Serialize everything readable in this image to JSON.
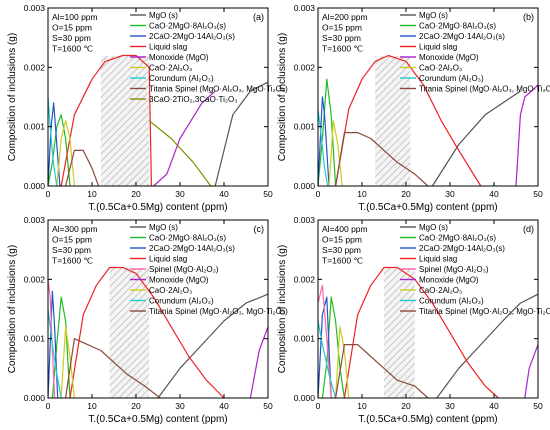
{
  "chart_data": [
    {
      "type": "line",
      "panel_label": "(a)",
      "conditions": [
        "Al=100 ppm",
        "O=15 ppm",
        "S=30 ppm",
        "T=1600 ℃"
      ],
      "xlabel": "T.(0.5Ca+0.5Mg) content (ppm)",
      "ylabel": "Composition of inclusions (g)",
      "xlim": [
        0,
        50
      ],
      "ylim": [
        0,
        0.003
      ],
      "xticks": [
        "0",
        "10",
        "20",
        "30",
        "40",
        "50"
      ],
      "yticks": [
        "0.000",
        "0.001",
        "0.002",
        "0.003"
      ],
      "hatched_region": [
        12,
        23
      ],
      "legend_position": "top-right",
      "series": [
        {
          "name": "MgO (s)",
          "color": "#555555",
          "x": [
            38,
            42,
            46,
            50
          ],
          "y": [
            0,
            0.0012,
            0.0016,
            0.00175
          ]
        },
        {
          "name": "CaO·2MgO·8Al₂O₃(s)",
          "color": "#22bb22",
          "x": [
            0,
            1,
            2,
            3,
            4,
            5
          ],
          "y": [
            0,
            0.0004,
            0.001,
            0.0012,
            0.0008,
            0
          ]
        },
        {
          "name": "2CaO·2MgO·14Al₂O₃(s)",
          "color": "#2255cc",
          "x": [
            0,
            0.7,
            1.3,
            2,
            2.7
          ],
          "y": [
            0,
            0.001,
            0.0014,
            0.0007,
            0
          ]
        },
        {
          "name": "Liquid slag",
          "color": "#ee2222",
          "x": [
            3,
            6,
            10,
            13,
            17,
            20,
            23,
            23.5
          ],
          "y": [
            0,
            0.0012,
            0.0018,
            0.0021,
            0.0022,
            0.0022,
            0.002,
            0
          ]
        },
        {
          "name": "Monoxide (MgO)",
          "color": "#aa22cc",
          "x": [
            24,
            27,
            30,
            35,
            38
          ],
          "y": [
            0,
            0.0002,
            0.0008,
            0.0014,
            0.0016
          ]
        },
        {
          "name": "CaO·2Al₂O₃",
          "color": "#cccc22",
          "x": [
            2,
            3,
            4,
            5,
            6
          ],
          "y": [
            0,
            0.0008,
            0.0011,
            0.0008,
            0
          ]
        },
        {
          "name": "Corundum (Al₂O₃)",
          "color": "#22cccc",
          "x": [
            0,
            0.5,
            1.2,
            2
          ],
          "y": [
            0.0015,
            0.001,
            0.0004,
            0
          ]
        },
        {
          "name": "Titania Spinel (MgO·Al₂O₃, MgO·Ti₂O₃)",
          "color": "#8b4a3c",
          "x": [
            4,
            6,
            8,
            10,
            11.5
          ],
          "y": [
            0,
            0.0006,
            0.0006,
            0.0003,
            0
          ]
        },
        {
          "name": "3CaO·2TiO₂,3CaO·Ti₂O₃",
          "color": "#888800",
          "x": [
            23,
            28,
            33,
            37
          ],
          "y": [
            0.0011,
            0.0008,
            0.0004,
            0
          ]
        }
      ]
    },
    {
      "type": "line",
      "panel_label": "(b)",
      "conditions": [
        "Al=200 ppm",
        "O=15 ppm",
        "S=30 ppm",
        "T=1600 ℃"
      ],
      "xlabel": "T.(0.5Ca+0.5Mg) content (ppm)",
      "ylabel": "Composition of inclusions (g)",
      "xlim": [
        0,
        50
      ],
      "ylim": [
        0,
        0.003
      ],
      "xticks": [
        "0",
        "10",
        "20",
        "30",
        "40",
        "50"
      ],
      "yticks": [
        "0.000",
        "0.001",
        "0.002",
        "0.003"
      ],
      "hatched_region": [
        13,
        21
      ],
      "legend_position": "top-right",
      "series": [
        {
          "name": "MgO (s)",
          "color": "#555555",
          "x": [
            26,
            32,
            38,
            44,
            46
          ],
          "y": [
            0,
            0.0007,
            0.0012,
            0.0015,
            0.0016
          ]
        },
        {
          "name": "CaO·2MgO·8Al₂O₃(s)",
          "color": "#22bb22",
          "x": [
            0,
            1,
            2,
            3,
            4
          ],
          "y": [
            0,
            0.0008,
            0.0018,
            0.0012,
            0
          ]
        },
        {
          "name": "2CaO·2MgO·14Al₂O₃(s)",
          "color": "#2255cc",
          "x": [
            0,
            1,
            1.5,
            2.5
          ],
          "y": [
            0,
            0.0015,
            0.0012,
            0
          ]
        },
        {
          "name": "Liquid slag",
          "color": "#ee2222",
          "x": [
            4,
            7,
            10,
            13,
            16,
            20,
            24,
            28,
            32,
            37
          ],
          "y": [
            0,
            0.0013,
            0.0018,
            0.0021,
            0.0022,
            0.0021,
            0.0017,
            0.0011,
            0.0006,
            0
          ]
        },
        {
          "name": "Monoxide (MgO)",
          "color": "#aa22cc",
          "x": [
            45,
            46,
            47,
            50
          ],
          "y": [
            0,
            0.0012,
            0.0015,
            0.0017
          ]
        },
        {
          "name": "CaO·2Al₂O₃",
          "color": "#cccc22",
          "x": [
            2.5,
            3.5,
            4.5,
            5.5
          ],
          "y": [
            0,
            0.0011,
            0.0007,
            0
          ]
        },
        {
          "name": "Corundum (Al₂O₃)",
          "color": "#22cccc",
          "x": [
            0,
            0.8,
            1.5,
            2.2
          ],
          "y": [
            0.0013,
            0.0008,
            0.0003,
            0
          ]
        },
        {
          "name": "Titania Spinel (MgO·Al₂O₃, MgO·Ti₂O₃)",
          "color": "#8b4a3c",
          "x": [
            4,
            6,
            9,
            12,
            15,
            18,
            22,
            25
          ],
          "y": [
            0,
            0.0009,
            0.0009,
            0.0008,
            0.0006,
            0.0004,
            0.0002,
            0
          ]
        }
      ]
    },
    {
      "type": "line",
      "panel_label": "(c)",
      "conditions": [
        "Al=300 ppm",
        "O=15 ppm",
        "S=30 ppm",
        "T=1600 ℃"
      ],
      "xlabel": "T.(0.5Ca+0.5Mg) content (ppm)",
      "ylabel": "Composition of inclusions (g)",
      "xlim": [
        0,
        50
      ],
      "ylim": [
        0,
        0.003
      ],
      "xticks": [
        "0",
        "10",
        "20",
        "30",
        "40",
        "50"
      ],
      "yticks": [
        "0.000",
        "0.001",
        "0.002",
        "0.003"
      ],
      "hatched_region": [
        14,
        23
      ],
      "legend_position": "top-right",
      "series": [
        {
          "name": "MgO (s)",
          "color": "#555555",
          "x": [
            25,
            30,
            35,
            40,
            45,
            50
          ],
          "y": [
            0,
            0.0005,
            0.0009,
            0.0013,
            0.0016,
            0.00175
          ]
        },
        {
          "name": "CaO·2MgO·8Al₂O₃(s)",
          "color": "#22bb22",
          "x": [
            1,
            2,
            3,
            4,
            5
          ],
          "y": [
            0,
            0.0009,
            0.0017,
            0.0013,
            0
          ]
        },
        {
          "name": "2CaO·2MgO·14Al₂O₃(s)",
          "color": "#2255cc",
          "x": [
            0,
            1,
            1.5,
            2.2
          ],
          "y": [
            0,
            0.0018,
            0.0012,
            0
          ]
        },
        {
          "name": "Liquid slag",
          "color": "#ee2222",
          "x": [
            5,
            8,
            11,
            14,
            17,
            20,
            24,
            28,
            32,
            36,
            40
          ],
          "y": [
            0,
            0.0014,
            0.0019,
            0.0022,
            0.0022,
            0.0021,
            0.0017,
            0.0012,
            0.0007,
            0.0003,
            0
          ]
        },
        {
          "name": "Spinel (MgO·Al₂O₃)",
          "color": "#ff66aa",
          "x": [
            0,
            0.5,
            1,
            1.5
          ],
          "y": [
            0.002,
            0.0017,
            0.0008,
            0
          ]
        },
        {
          "name": "Monoxide (MgO)",
          "color": "#aa22cc",
          "x": [
            46,
            48,
            50
          ],
          "y": [
            0,
            0.0008,
            0.0012
          ]
        },
        {
          "name": "CaO·2Al₂O₃",
          "color": "#cccc22",
          "x": [
            3,
            4,
            5,
            6
          ],
          "y": [
            0,
            0.0012,
            0.0007,
            0
          ]
        },
        {
          "name": "Corundum (Al₂O₃)",
          "color": "#22cccc",
          "x": [
            0,
            1,
            2,
            3
          ],
          "y": [
            0.0015,
            0.0009,
            0.0004,
            0
          ]
        },
        {
          "name": "Titania Spinel (MgO·Al₂O₃, MgO·Ti₂O₃)",
          "color": "#8b4a3c",
          "x": [
            4,
            6,
            9,
            12,
            15,
            18,
            22,
            25.5
          ],
          "y": [
            0,
            0.001,
            0.0009,
            0.0008,
            0.0006,
            0.0004,
            0.0002,
            0
          ]
        }
      ]
    },
    {
      "type": "line",
      "panel_label": "(d)",
      "conditions": [
        "Al=400 ppm",
        "O=15 ppm",
        "S=30 ppm",
        "T=1600 ℃"
      ],
      "xlabel": "T.(0.5Ca+0.5Mg) content (ppm)",
      "ylabel": "Composition of inclusions (g)",
      "xlim": [
        0,
        50
      ],
      "ylim": [
        0,
        0.003
      ],
      "xticks": [
        "0",
        "10",
        "20",
        "30",
        "40",
        "50"
      ],
      "yticks": [
        "0.000",
        "0.001",
        "0.002",
        "0.003"
      ],
      "hatched_region": [
        15,
        22
      ],
      "legend_position": "top-right",
      "series": [
        {
          "name": "MgO (s)",
          "color": "#555555",
          "x": [
            27,
            32,
            37,
            42,
            46,
            50
          ],
          "y": [
            0,
            0.0005,
            0.0009,
            0.0013,
            0.0016,
            0.00175
          ]
        },
        {
          "name": "CaO·2MgO·8Al₂O₃(s)",
          "color": "#22bb22",
          "x": [
            1,
            2,
            3,
            4,
            5,
            6
          ],
          "y": [
            0,
            0.0006,
            0.0017,
            0.0013,
            0.0005,
            0
          ]
        },
        {
          "name": "2CaO·2MgO·14Al₂O₃(s)",
          "color": "#2255cc",
          "x": [
            0,
            1,
            2,
            3
          ],
          "y": [
            0,
            0.0014,
            0.0017,
            0
          ]
        },
        {
          "name": "Liquid slag",
          "color": "#ee2222",
          "x": [
            6,
            9,
            12,
            15,
            18,
            22,
            26,
            30,
            34,
            38,
            41
          ],
          "y": [
            0,
            0.0014,
            0.0019,
            0.0022,
            0.0022,
            0.002,
            0.0016,
            0.0011,
            0.0006,
            0.0002,
            0
          ]
        },
        {
          "name": "Spinel (MgO·Al₂O₃)",
          "color": "#ff66aa",
          "x": [
            0,
            1,
            2,
            3
          ],
          "y": [
            0.0016,
            0.0019,
            0.001,
            0
          ]
        },
        {
          "name": "Monoxide (MgO)",
          "color": "#aa22cc",
          "x": [
            47,
            48,
            50
          ],
          "y": [
            0,
            0.0005,
            0.0009
          ]
        },
        {
          "name": "CaO·2Al₂O₃",
          "color": "#cccc22",
          "x": [
            4,
            5,
            6,
            7
          ],
          "y": [
            0,
            0.0012,
            0.0008,
            0
          ]
        },
        {
          "name": "Corundum (Al₂O₃)",
          "color": "#22cccc",
          "x": [
            0,
            1,
            2.5,
            4
          ],
          "y": [
            0.0013,
            0.0009,
            0.0004,
            0
          ]
        },
        {
          "name": "Titania Spinel (MgO·Al₂O₃, MgO·Ti₂O₃)",
          "color": "#8b4a3c",
          "x": [
            4,
            6,
            9,
            12,
            15,
            18,
            22,
            25
          ],
          "y": [
            0,
            0.0009,
            0.0009,
            0.0007,
            0.0005,
            0.0003,
            0.0002,
            0
          ]
        }
      ]
    }
  ]
}
